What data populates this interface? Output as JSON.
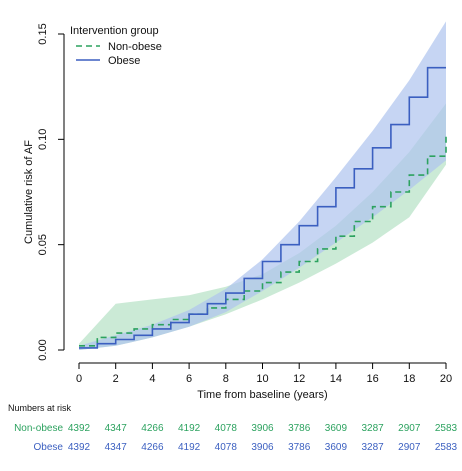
{
  "chart_data": {
    "type": "line",
    "ylabel": "Cumulative risk of AF",
    "xlabel": "Time from baseline (years)",
    "xlim": [
      0,
      20
    ],
    "ylim": [
      0,
      0.15
    ],
    "xticks": [
      "0",
      "2",
      "4",
      "6",
      "8",
      "10",
      "12",
      "14",
      "16",
      "18",
      "20"
    ],
    "yticks": [
      "0.00",
      "0.05",
      "0.10",
      "0.15"
    ],
    "legend": {
      "title": "Intervention group",
      "placement": "top-left",
      "entries": [
        {
          "label": "Non-obese",
          "style": "dashed",
          "color": "#2ca25f"
        },
        {
          "label": "Obese",
          "style": "solid",
          "color": "#3b5fc0"
        }
      ]
    },
    "series": [
      {
        "name": "Non-obese",
        "color": "#2ca25f",
        "band_color": "#b9e3c8",
        "style": "dashed",
        "step_x": [
          0,
          1,
          2,
          3,
          4,
          5,
          6,
          7,
          8,
          9,
          10,
          11,
          12,
          13,
          14,
          15,
          16,
          17,
          18,
          19,
          20
        ],
        "step_y": [
          0.002,
          0.006,
          0.008,
          0.01,
          0.012,
          0.0145,
          0.017,
          0.02,
          0.024,
          0.028,
          0.032,
          0.037,
          0.042,
          0.048,
          0.054,
          0.061,
          0.068,
          0.075,
          0.083,
          0.092,
          0.102
        ],
        "ci_x": [
          0,
          2,
          4,
          6,
          8,
          10,
          12,
          14,
          16,
          18,
          20
        ],
        "ci_lower": [
          0.0,
          0.002,
          0.006,
          0.011,
          0.017,
          0.024,
          0.032,
          0.041,
          0.051,
          0.063,
          0.088
        ],
        "ci_upper": [
          0.003,
          0.022,
          0.024,
          0.026,
          0.03,
          0.036,
          0.046,
          0.059,
          0.075,
          0.094,
          0.117
        ]
      },
      {
        "name": "Obese",
        "color": "#3b5fc0",
        "band_color": "#aec3ee",
        "style": "solid",
        "step_x": [
          0,
          1,
          2,
          3,
          4,
          5,
          6,
          7,
          8,
          9,
          10,
          11,
          12,
          13,
          14,
          15,
          16,
          17,
          18,
          19,
          20
        ],
        "step_y": [
          0.001,
          0.003,
          0.005,
          0.007,
          0.01,
          0.013,
          0.017,
          0.022,
          0.027,
          0.034,
          0.042,
          0.05,
          0.059,
          0.068,
          0.077,
          0.086,
          0.096,
          0.107,
          0.12,
          0.134,
          0.134
        ],
        "ci_x": [
          0,
          2,
          4,
          6,
          8,
          10,
          12,
          14,
          16,
          18,
          20
        ],
        "ci_lower": [
          0.0,
          0.002,
          0.006,
          0.011,
          0.018,
          0.028,
          0.039,
          0.051,
          0.063,
          0.076,
          0.09
        ],
        "ci_upper": [
          0.002,
          0.007,
          0.012,
          0.019,
          0.029,
          0.043,
          0.061,
          0.082,
          0.104,
          0.128,
          0.156
        ]
      }
    ],
    "risk_table": {
      "title": "Numbers at risk",
      "rows": [
        {
          "label": "Non-obese",
          "color": "#2ca25f",
          "values": [
            "4392",
            "4347",
            "4266",
            "4192",
            "4078",
            "3906",
            "3786",
            "3609",
            "3287",
            "2907",
            "2583"
          ]
        },
        {
          "label": "Obese",
          "color": "#3b5fc0",
          "values": [
            "4392",
            "4347",
            "4266",
            "4192",
            "4078",
            "3906",
            "3786",
            "3609",
            "3287",
            "2907",
            "2583"
          ]
        }
      ]
    }
  }
}
